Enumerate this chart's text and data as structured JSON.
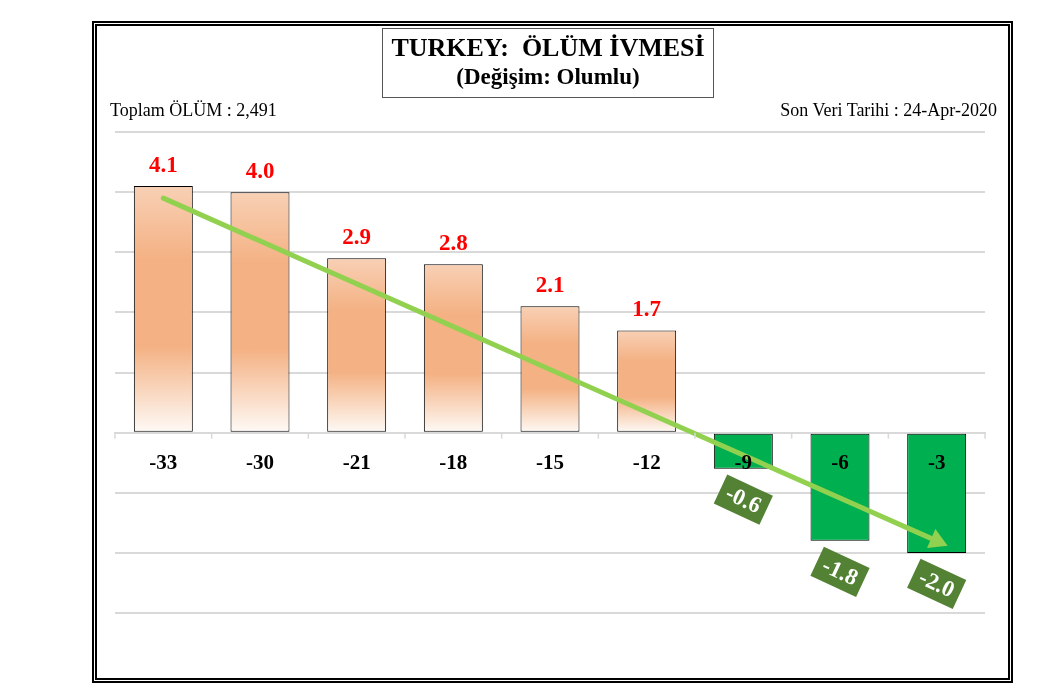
{
  "chart_data": {
    "type": "bar",
    "title": "TURKEY:  ÖLÜM İVMESİ",
    "subtitle": "(Değişim: Olumlu)",
    "annotations": [
      "Toplam ÖLÜM : 2,491",
      "Son Veri Tarihi : 24-Apr-2020"
    ],
    "categories": [
      "-33",
      "-30",
      "-21",
      "-18",
      "-15",
      "-12",
      "-9",
      "-6",
      "-3"
    ],
    "series": [
      {
        "values": [
          4.1,
          4.0,
          2.9,
          2.8,
          2.1,
          1.7,
          -0.6,
          -1.8,
          -2.0
        ],
        "value_labels": [
          "4.1",
          "4.0",
          "2.9",
          "2.8",
          "2.1",
          "1.7",
          "-0.6",
          "-1.8",
          "-2.0"
        ],
        "colors": [
          "#f4b183",
          "#f4b183",
          "#f4b183",
          "#f4b183",
          "#f4b183",
          "#f4b183",
          "#00b050",
          "#00b050",
          "#00b050"
        ]
      },
      {
        "type": "line",
        "x": [
          "-33",
          "-3"
        ],
        "values": [
          3.9,
          -1.8
        ],
        "color": "#92d050"
      }
    ],
    "ylim": [
      -3,
      5
    ],
    "yticks": [
      {
        "value": -3,
        "label": null
      },
      {
        "value": -2,
        "label": null
      },
      {
        "value": -1,
        "label": null
      },
      {
        "value": 0,
        "label": null
      },
      {
        "value": 1,
        "label": null
      },
      {
        "value": 2,
        "label": null
      },
      {
        "value": 3,
        "label": null
      },
      {
        "value": 4,
        "label": null
      },
      {
        "value": 5,
        "label": null
      }
    ],
    "grid": "y",
    "legend": false,
    "tick_labels": "x"
  }
}
